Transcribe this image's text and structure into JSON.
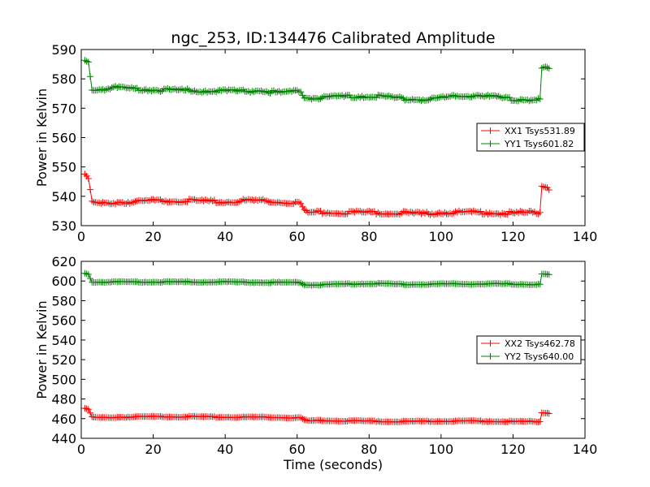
{
  "chart_data": [
    {
      "type": "line",
      "title": "ngc_253, ID:134476 Calibrated Amplitude",
      "xlabel": "",
      "ylabel": "Power in Kelvin",
      "xlim": [
        0,
        140
      ],
      "ylim": [
        530,
        590
      ],
      "xticks": [
        "0",
        "20",
        "40",
        "60",
        "80",
        "100",
        "120",
        "140"
      ],
      "yticks": [
        "530",
        "540",
        "550",
        "560",
        "570",
        "580",
        "590"
      ],
      "legend_position": "center-right",
      "series": [
        {
          "name": "XX1 Tsys531.89",
          "color": "#ff0000",
          "x": [
            1,
            2,
            3,
            5,
            10,
            15,
            20,
            30,
            40,
            45,
            50,
            55,
            60,
            61,
            62,
            63,
            70,
            80,
            90,
            95,
            100,
            110,
            120,
            125,
            127.5,
            128,
            129,
            130
          ],
          "y": [
            547,
            546,
            538,
            537.5,
            538,
            538,
            538.5,
            538.5,
            538,
            538.5,
            538.5,
            538,
            538,
            537.5,
            535,
            534.5,
            534.5,
            534.5,
            534.3,
            534,
            534.5,
            534.5,
            534.2,
            534.5,
            534.5,
            543.5,
            543.5,
            542.5
          ]
        },
        {
          "name": "YY1 Tsys601.82",
          "color": "#008000",
          "x": [
            1,
            2,
            3,
            5,
            10,
            15,
            20,
            30,
            40,
            45,
            50,
            55,
            60,
            61,
            62,
            63,
            70,
            80,
            90,
            95,
            100,
            110,
            120,
            125,
            127.5,
            128,
            129,
            130
          ],
          "y": [
            586.5,
            586,
            576.5,
            576.5,
            577,
            576.5,
            576.3,
            576,
            575.8,
            575.8,
            576,
            575.3,
            575.8,
            576,
            573.5,
            573.5,
            573.8,
            574.2,
            573.2,
            573,
            573.5,
            574.5,
            573,
            573,
            573,
            583.5,
            584,
            583.5
          ]
        }
      ]
    },
    {
      "type": "line",
      "title": "",
      "xlabel": "Time (seconds)",
      "ylabel": "Power in Kelvin",
      "xlim": [
        0,
        140
      ],
      "ylim": [
        440,
        620
      ],
      "xticks": [
        "0",
        "20",
        "40",
        "60",
        "80",
        "100",
        "120",
        "140"
      ],
      "yticks": [
        "440",
        "460",
        "480",
        "500",
        "520",
        "540",
        "560",
        "580",
        "600",
        "620"
      ],
      "legend_position": "center-right",
      "series": [
        {
          "name": "XX2 Tsys462.78",
          "color": "#ff0000",
          "x": [
            1,
            2,
            3,
            5,
            10,
            20,
            30,
            40,
            50,
            60,
            61,
            62,
            63,
            70,
            80,
            90,
            100,
            110,
            120,
            125,
            127.5,
            128,
            129,
            130
          ],
          "y": [
            470,
            469.5,
            461.5,
            461,
            461.5,
            462,
            462,
            461.5,
            461.5,
            461,
            461,
            458.5,
            458,
            458,
            457.5,
            457,
            457.5,
            457.5,
            457,
            457,
            457,
            466,
            466,
            465.5
          ]
        },
        {
          "name": "YY2 Tsys640.00",
          "color": "#008000",
          "x": [
            1,
            2,
            3,
            5,
            10,
            20,
            30,
            40,
            50,
            60,
            61,
            62,
            63,
            70,
            80,
            90,
            100,
            110,
            120,
            125,
            127.5,
            128,
            129,
            130
          ],
          "y": [
            608,
            607,
            599,
            599,
            599,
            599,
            599,
            599,
            598.5,
            598.5,
            598.5,
            596,
            596,
            596.5,
            597.5,
            596.5,
            597,
            597,
            597,
            596.5,
            596.5,
            607,
            607,
            606.5
          ]
        }
      ]
    }
  ]
}
